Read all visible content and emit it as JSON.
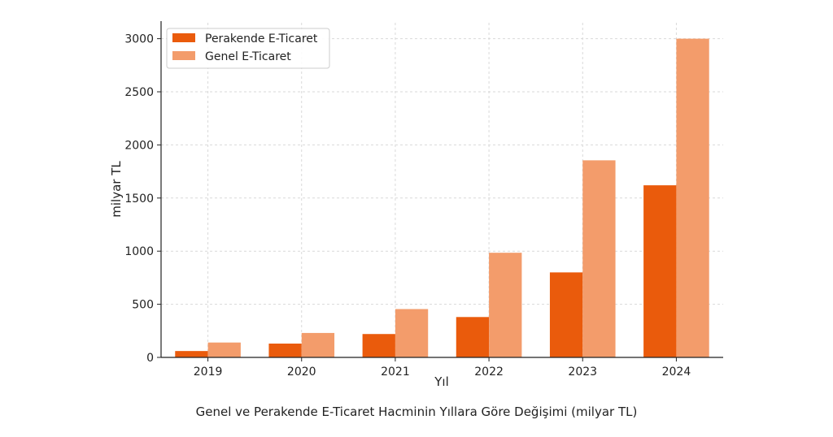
{
  "caption": "Genel ve Perakende E-Ticaret Hacminin Yıllara Göre Değişimi (milyar TL)",
  "chart_data": {
    "type": "bar",
    "title": "",
    "xlabel": "Yıl",
    "ylabel": "milyar TL",
    "categories": [
      "2019",
      "2020",
      "2021",
      "2022",
      "2023",
      "2024"
    ],
    "series": [
      {
        "name": "Perakende E-Ticaret",
        "color": "#ea5b0c",
        "values": [
          60,
          130,
          220,
          380,
          800,
          1620
        ]
      },
      {
        "name": "Genel E-Ticaret",
        "color": "#f39c6b",
        "values": [
          140,
          230,
          455,
          985,
          1855,
          3000
        ]
      }
    ],
    "ylim": [
      0,
      3150
    ],
    "yticks": [
      0,
      500,
      1000,
      1500,
      2000,
      2500,
      3000
    ],
    "grid": true,
    "legend": "top-left"
  }
}
